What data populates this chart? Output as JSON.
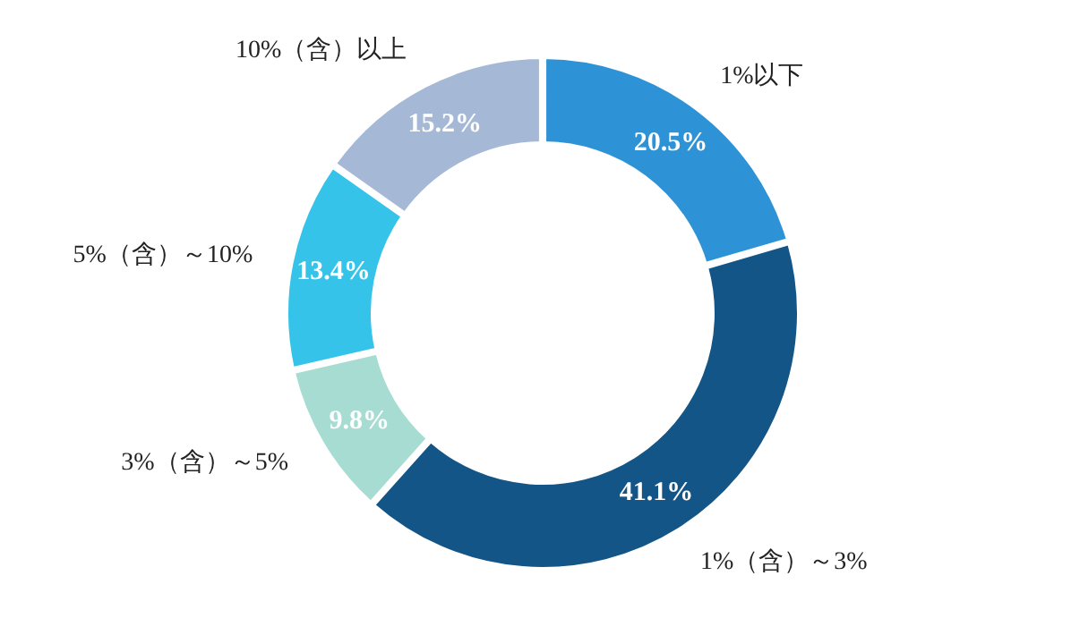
{
  "chart_data": {
    "type": "donut",
    "categories": [
      "1%以下",
      "1%（含）～3%",
      "3%（含）～5%",
      "5%（含）～10%",
      "10%（含）以上"
    ],
    "values": [
      20.5,
      41.1,
      9.8,
      13.4,
      15.2
    ],
    "colors": [
      "#2e93d6",
      "#145587",
      "#a6dcd2",
      "#35c3ea",
      "#a5b9d7"
    ],
    "value_labels": [
      "20.5%",
      "41.1%",
      "9.8%",
      "13.4%",
      "15.2%"
    ]
  }
}
